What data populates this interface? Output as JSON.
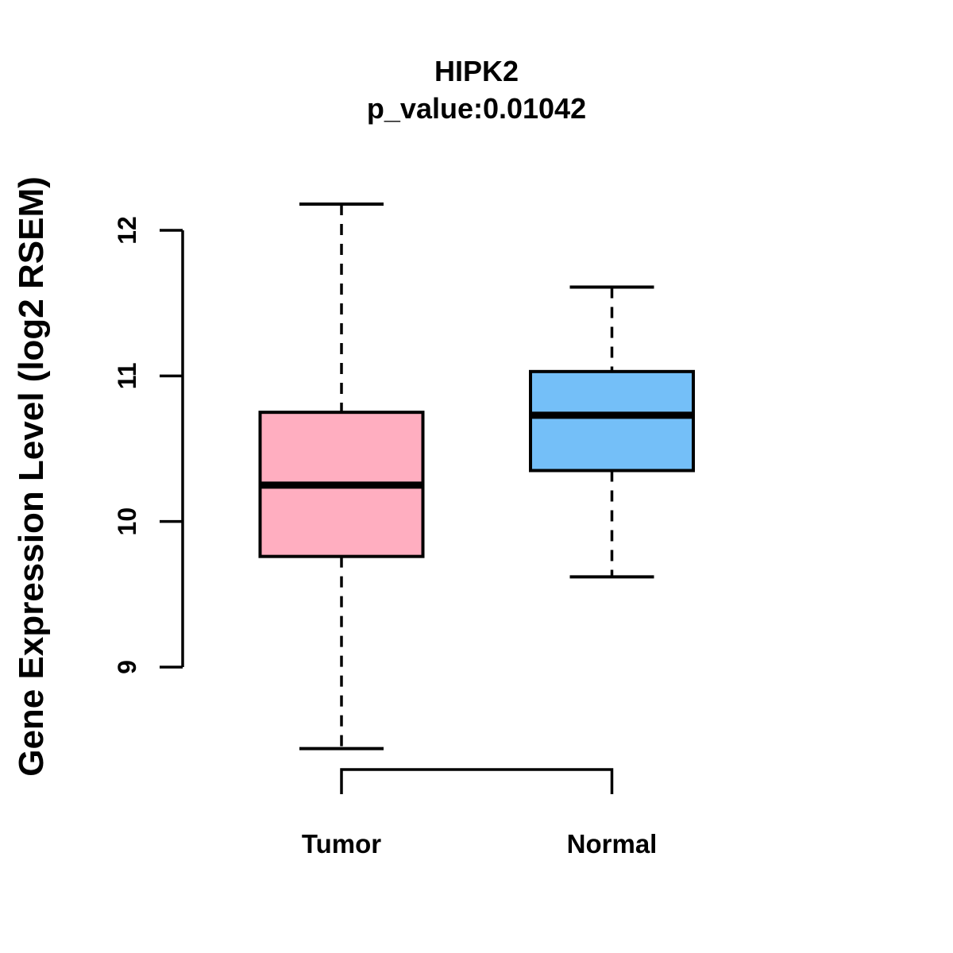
{
  "chart_data": {
    "type": "boxplot",
    "title": "HIPK2",
    "subtitle": "p_value:0.01042",
    "ylabel": "Gene Expression Level (log2 RSEM)",
    "xlabel": "",
    "categories": [
      "Tumor",
      "Normal"
    ],
    "yticks": [
      9,
      10,
      11,
      12
    ],
    "ylim": [
      8.2,
      12.45
    ],
    "grid": false,
    "legend": "none",
    "series": [
      {
        "name": "Tumor",
        "fill": "#FFAEC0",
        "whisker_low": 8.44,
        "q1": 9.76,
        "median": 10.25,
        "q3": 10.75,
        "whisker_high": 12.18
      },
      {
        "name": "Normal",
        "fill": "#74BFF8",
        "whisker_low": 9.62,
        "q1": 10.35,
        "median": 10.73,
        "q3": 11.03,
        "whisker_high": 11.61
      }
    ],
    "colors": {
      "line": "#000000",
      "background": "#FFFFFF"
    }
  }
}
